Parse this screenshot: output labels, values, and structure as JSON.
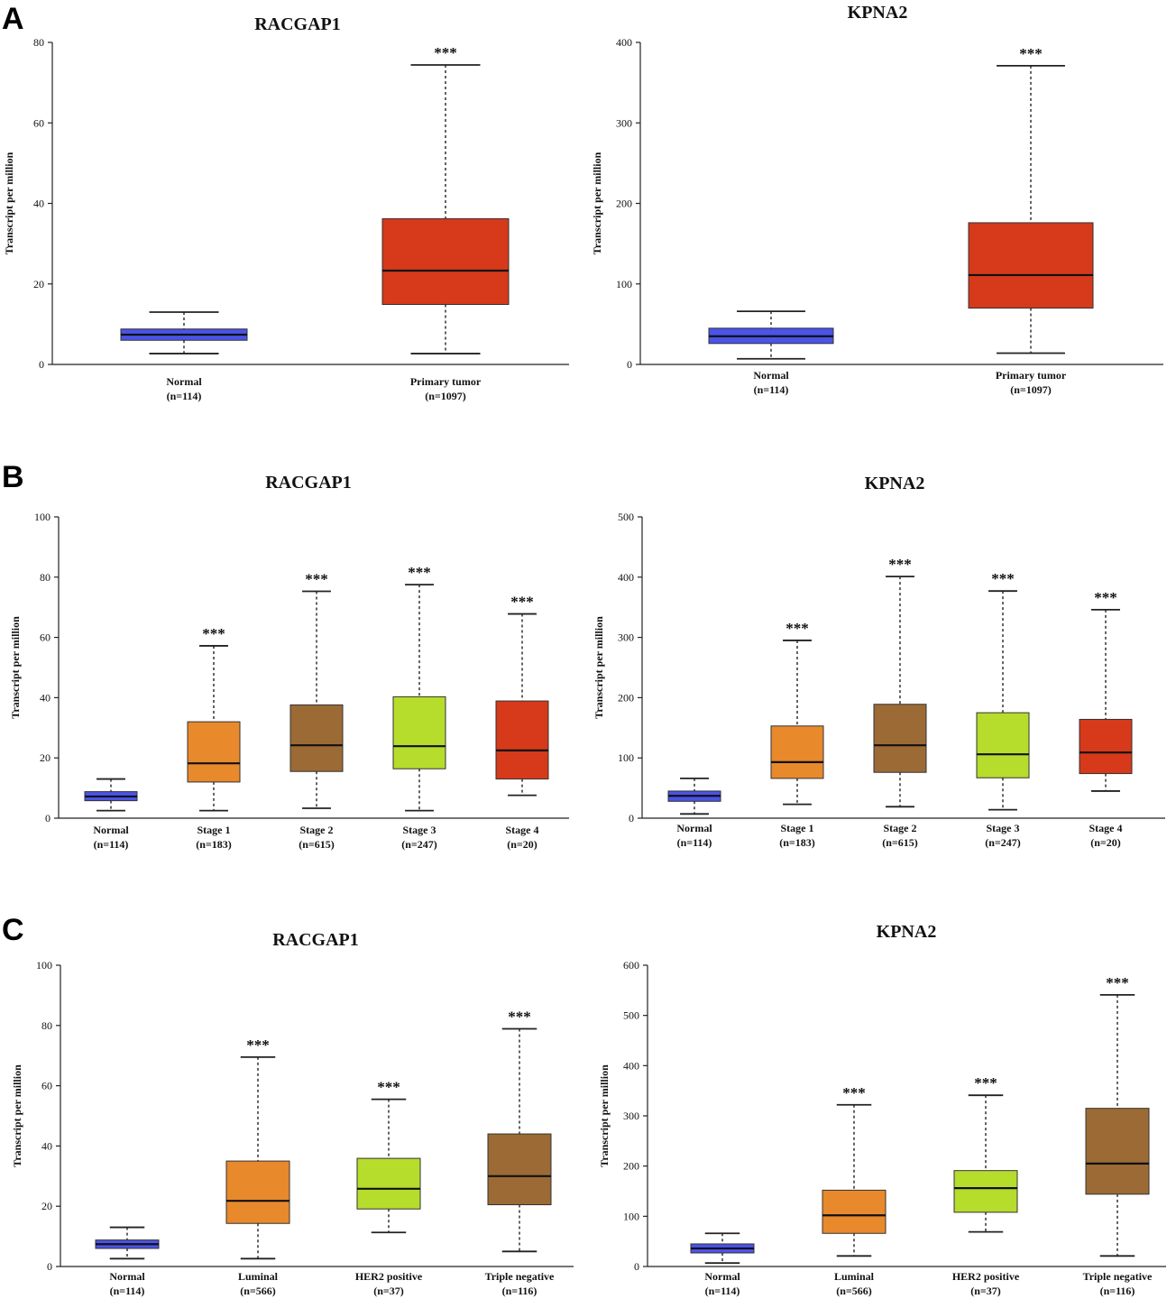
{
  "panel_labels": [
    "A",
    "B",
    "C"
  ],
  "chart_data": [
    {
      "type": "box",
      "panel": "A",
      "title": "RACGAP1",
      "ylabel": "Transcript per million",
      "ylim": [
        0,
        80
      ],
      "yticks": [
        0,
        20,
        40,
        60,
        80
      ],
      "categories": [
        "Normal",
        "Primary tumor"
      ],
      "counts": [
        "(n=114)",
        "(n=1097)"
      ],
      "colors": [
        "#4a54e8",
        "#d63a1a"
      ],
      "boxes": [
        {
          "min": 2.7,
          "q1": 6.0,
          "median": 7.4,
          "q3": 8.8,
          "max": 13.0,
          "sig": ""
        },
        {
          "min": 2.7,
          "q1": 14.9,
          "median": 23.3,
          "q3": 36.2,
          "max": 74.4,
          "sig": "***"
        }
      ]
    },
    {
      "type": "box",
      "panel": "A",
      "title": "KPNA2",
      "ylabel": "Transcript per million",
      "ylim": [
        0,
        400
      ],
      "yticks": [
        0,
        100,
        200,
        300,
        400
      ],
      "categories": [
        "Normal",
        "Primary tumor"
      ],
      "counts": [
        "(n=114)",
        "(n=1097)"
      ],
      "colors": [
        "#4a54e8",
        "#d63a1a"
      ],
      "boxes": [
        {
          "min": 7,
          "q1": 26,
          "median": 35,
          "q3": 45,
          "max": 66,
          "sig": ""
        },
        {
          "min": 14,
          "q1": 70,
          "median": 111,
          "q3": 176,
          "max": 371,
          "sig": "***"
        }
      ]
    },
    {
      "type": "box",
      "panel": "B",
      "title": "RACGAP1",
      "ylabel": "Transcript per million",
      "ylim": [
        0,
        100
      ],
      "yticks": [
        0,
        20,
        40,
        60,
        80,
        100
      ],
      "categories": [
        "Normal",
        "Stage 1",
        "Stage 2",
        "Stage 3",
        "Stage 4"
      ],
      "counts": [
        "(n=114)",
        "(n=183)",
        "(n=615)",
        "(n=247)",
        "(n=20)"
      ],
      "colors": [
        "#4a54e8",
        "#e8892c",
        "#9b6a35",
        "#b6dc2c",
        "#d63a1a"
      ],
      "boxes": [
        {
          "min": 2.5,
          "q1": 5.8,
          "median": 7.2,
          "q3": 8.8,
          "max": 13.0,
          "sig": ""
        },
        {
          "min": 2.5,
          "q1": 12.0,
          "median": 18.2,
          "q3": 32.0,
          "max": 57.2,
          "sig": "***"
        },
        {
          "min": 3.3,
          "q1": 15.5,
          "median": 24.2,
          "q3": 37.6,
          "max": 75.3,
          "sig": "***"
        },
        {
          "min": 2.5,
          "q1": 16.4,
          "median": 23.9,
          "q3": 40.3,
          "max": 77.5,
          "sig": "***"
        },
        {
          "min": 7.6,
          "q1": 13.0,
          "median": 22.5,
          "q3": 38.9,
          "max": 67.8,
          "sig": "***"
        }
      ]
    },
    {
      "type": "box",
      "panel": "B",
      "title": "KPNA2",
      "ylabel": "Transcript per million",
      "ylim": [
        0,
        500
      ],
      "yticks": [
        0,
        100,
        200,
        300,
        400,
        500
      ],
      "categories": [
        "Normal",
        "Stage 1",
        "Stage 2",
        "Stage 3",
        "Stage 4"
      ],
      "counts": [
        "(n=114)",
        "(n=183)",
        "(n=615)",
        "(n=247)",
        "(n=20)"
      ],
      "colors": [
        "#4a54e8",
        "#e8892c",
        "#9b6a35",
        "#b6dc2c",
        "#d63a1a"
      ],
      "boxes": [
        {
          "min": 7,
          "q1": 28,
          "median": 37,
          "q3": 45,
          "max": 66,
          "sig": ""
        },
        {
          "min": 23,
          "q1": 66,
          "median": 93,
          "q3": 153,
          "max": 295,
          "sig": "***"
        },
        {
          "min": 19,
          "q1": 76,
          "median": 121,
          "q3": 189,
          "max": 401,
          "sig": "***"
        },
        {
          "min": 14,
          "q1": 67,
          "median": 106,
          "q3": 175,
          "max": 377,
          "sig": "***"
        },
        {
          "min": 45,
          "q1": 74,
          "median": 109,
          "q3": 164,
          "max": 346,
          "sig": "***"
        }
      ]
    },
    {
      "type": "box",
      "panel": "C",
      "title": "RACGAP1",
      "ylabel": "Transcript per million",
      "ylim": [
        0,
        100
      ],
      "yticks": [
        0,
        20,
        40,
        60,
        80,
        100
      ],
      "categories": [
        "Normal",
        "Luminal",
        "HER2 positive",
        "Triple negative"
      ],
      "counts": [
        "(n=114)",
        "(n=566)",
        "(n=37)",
        "(n=116)"
      ],
      "colors": [
        "#4a54e8",
        "#e8892c",
        "#b6dc2c",
        "#9b6a35"
      ],
      "boxes": [
        {
          "min": 2.6,
          "q1": 6.0,
          "median": 7.4,
          "q3": 8.8,
          "max": 13.0,
          "sig": ""
        },
        {
          "min": 2.6,
          "q1": 14.3,
          "median": 21.8,
          "q3": 35.0,
          "max": 69.5,
          "sig": "***"
        },
        {
          "min": 11.3,
          "q1": 19.1,
          "median": 25.8,
          "q3": 35.9,
          "max": 55.5,
          "sig": "***"
        },
        {
          "min": 5.0,
          "q1": 20.5,
          "median": 30.0,
          "q3": 44.0,
          "max": 78.9,
          "sig": "***"
        }
      ]
    },
    {
      "type": "box",
      "panel": "C",
      "title": "KPNA2",
      "ylabel": "Transcript per million",
      "ylim": [
        0,
        600
      ],
      "yticks": [
        0,
        100,
        200,
        300,
        400,
        500,
        600
      ],
      "categories": [
        "Normal",
        "Luminal",
        "HER2 positive",
        "Triple negative"
      ],
      "counts": [
        "(n=114)",
        "(n=566)",
        "(n=37)",
        "(n=116)"
      ],
      "colors": [
        "#4a54e8",
        "#e8892c",
        "#b6dc2c",
        "#9b6a35"
      ],
      "boxes": [
        {
          "min": 7,
          "q1": 27,
          "median": 36,
          "q3": 45,
          "max": 66,
          "sig": ""
        },
        {
          "min": 21,
          "q1": 66,
          "median": 102,
          "q3": 152,
          "max": 322,
          "sig": "***"
        },
        {
          "min": 69,
          "q1": 108,
          "median": 156,
          "q3": 191,
          "max": 341,
          "sig": "***"
        },
        {
          "min": 21,
          "q1": 144,
          "median": 205,
          "q3": 315,
          "max": 541,
          "sig": "***"
        }
      ]
    }
  ]
}
